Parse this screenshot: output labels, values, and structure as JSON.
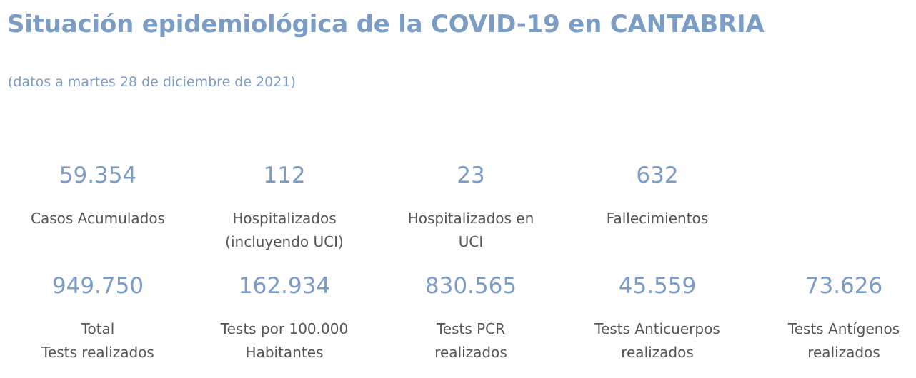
{
  "title": "Situación epidemiológica de la COVID-19 en CANTABRIA",
  "subtitle": "(datos a martes 28 de diciembre de 2021)",
  "stats_row1": [
    {
      "value": "59.354",
      "label": "Casos Acumulados"
    },
    {
      "value": "112",
      "label": "Hospitalizados\n(incluyendo UCI)"
    },
    {
      "value": "23",
      "label": "Hospitalizados en\nUCI"
    },
    {
      "value": "632",
      "label": "Fallecimientos"
    }
  ],
  "stats_row2": [
    {
      "value": "949.750",
      "label": "Total\nTests realizados"
    },
    {
      "value": "162.934",
      "label": "Tests por 100.000\nHabitantes"
    },
    {
      "value": "830.565",
      "label": "Tests PCR\nrealizados"
    },
    {
      "value": "45.559",
      "label": "Tests Anticuerpos\nrealizados"
    },
    {
      "value": "73.626",
      "label": "Tests Antígenos\nrealizados"
    }
  ],
  "colors": {
    "accent": "#7b9cc4",
    "label_text": "#555555",
    "background": "#ffffff"
  }
}
